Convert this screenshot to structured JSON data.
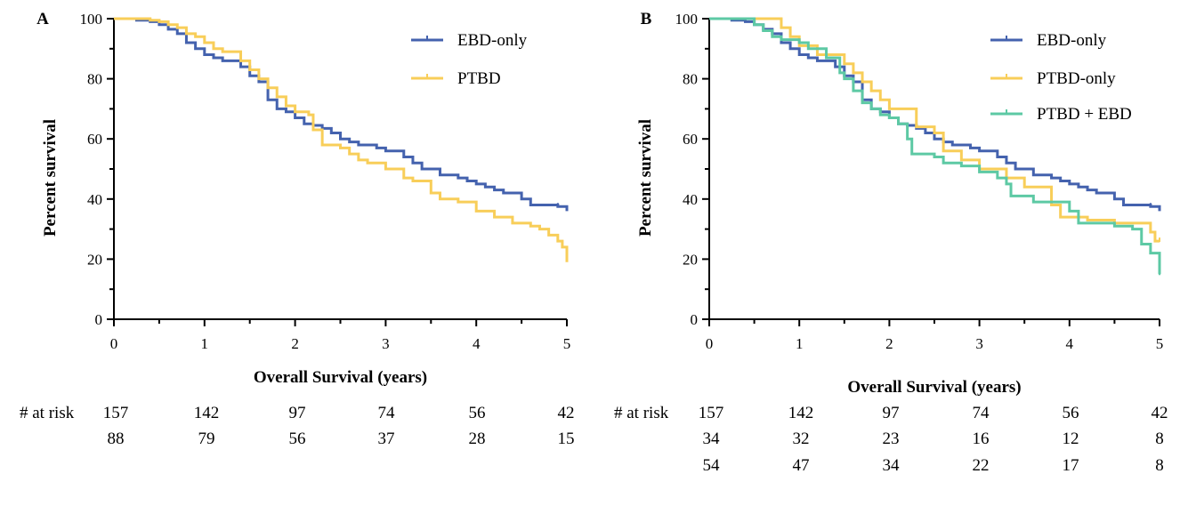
{
  "colors": {
    "ebd": "#4462AE",
    "ptbd": "#F8CE59",
    "combo": "#5DC9A4",
    "axis": "#000000"
  },
  "chart_data": [
    {
      "panel": "A",
      "type": "line",
      "xlabel": "Overall Survival (years)",
      "ylabel": "Percent survival",
      "xlim": [
        0,
        5
      ],
      "ylim": [
        0,
        100
      ],
      "xticks": [
        "0",
        "1",
        "2",
        "3",
        "4",
        "5"
      ],
      "yticks": [
        "0",
        "20",
        "40",
        "60",
        "80",
        "100"
      ],
      "legend": "top-right",
      "series": [
        {
          "name": "EBD-only",
          "color": "ebd",
          "points": [
            [
              0,
              100
            ],
            [
              0.25,
              99.5
            ],
            [
              0.4,
              99
            ],
            [
              0.5,
              98
            ],
            [
              0.6,
              96.5
            ],
            [
              0.7,
              95
            ],
            [
              0.8,
              92
            ],
            [
              0.9,
              90
            ],
            [
              1.0,
              88
            ],
            [
              1.1,
              87
            ],
            [
              1.2,
              86
            ],
            [
              1.4,
              84
            ],
            [
              1.5,
              81
            ],
            [
              1.6,
              79
            ],
            [
              1.7,
              73
            ],
            [
              1.8,
              70
            ],
            [
              1.9,
              69
            ],
            [
              2.0,
              67
            ],
            [
              2.1,
              65
            ],
            [
              2.2,
              64.5
            ],
            [
              2.3,
              63.5
            ],
            [
              2.4,
              62
            ],
            [
              2.5,
              60
            ],
            [
              2.6,
              59
            ],
            [
              2.7,
              58
            ],
            [
              2.9,
              57
            ],
            [
              3.0,
              56
            ],
            [
              3.2,
              54
            ],
            [
              3.3,
              52
            ],
            [
              3.4,
              50
            ],
            [
              3.6,
              48
            ],
            [
              3.8,
              47
            ],
            [
              3.9,
              46
            ],
            [
              4.0,
              45
            ],
            [
              4.1,
              44
            ],
            [
              4.2,
              43
            ],
            [
              4.3,
              42
            ],
            [
              4.5,
              40
            ],
            [
              4.6,
              38
            ],
            [
              4.7,
              38
            ],
            [
              4.9,
              37.5
            ],
            [
              5.0,
              36
            ]
          ]
        },
        {
          "name": "PTBD",
          "color": "ptbd",
          "points": [
            [
              0,
              100
            ],
            [
              0.4,
              99.5
            ],
            [
              0.5,
              99
            ],
            [
              0.6,
              98
            ],
            [
              0.7,
              97
            ],
            [
              0.8,
              95
            ],
            [
              0.9,
              94
            ],
            [
              1.0,
              92
            ],
            [
              1.1,
              90
            ],
            [
              1.2,
              89
            ],
            [
              1.4,
              86
            ],
            [
              1.5,
              83
            ],
            [
              1.6,
              80
            ],
            [
              1.7,
              77
            ],
            [
              1.8,
              74
            ],
            [
              1.9,
              71
            ],
            [
              2.0,
              69
            ],
            [
              2.15,
              68
            ],
            [
              2.2,
              63
            ],
            [
              2.3,
              58
            ],
            [
              2.5,
              57
            ],
            [
              2.6,
              55
            ],
            [
              2.7,
              53
            ],
            [
              2.8,
              52
            ],
            [
              3.0,
              50
            ],
            [
              3.2,
              47
            ],
            [
              3.3,
              46
            ],
            [
              3.5,
              42
            ],
            [
              3.6,
              40
            ],
            [
              3.8,
              39
            ],
            [
              4.0,
              36
            ],
            [
              4.2,
              34
            ],
            [
              4.4,
              32
            ],
            [
              4.6,
              31
            ],
            [
              4.7,
              30
            ],
            [
              4.8,
              28
            ],
            [
              4.9,
              26
            ],
            [
              4.95,
              24
            ],
            [
              5.0,
              19
            ]
          ]
        }
      ],
      "risk_table": {
        "label": "# at risk",
        "rows": [
          [
            "157",
            "142",
            "97",
            "74",
            "56",
            "42"
          ],
          [
            "88",
            "79",
            "56",
            "37",
            "28",
            "15"
          ]
        ]
      }
    },
    {
      "panel": "B",
      "type": "line",
      "xlabel": "Overall Survival (years)",
      "ylabel": "Percent survival",
      "xlim": [
        0,
        5
      ],
      "ylim": [
        0,
        100
      ],
      "xticks": [
        "0",
        "1",
        "2",
        "3",
        "4",
        "5"
      ],
      "yticks": [
        "0",
        "20",
        "40",
        "60",
        "80",
        "100"
      ],
      "legend": "top-right",
      "series": [
        {
          "name": "EBD-only",
          "color": "ebd",
          "points": [
            [
              0,
              100
            ],
            [
              0.25,
              99.5
            ],
            [
              0.4,
              99
            ],
            [
              0.5,
              98
            ],
            [
              0.6,
              96.5
            ],
            [
              0.7,
              95
            ],
            [
              0.8,
              92
            ],
            [
              0.9,
              90
            ],
            [
              1.0,
              88
            ],
            [
              1.1,
              87
            ],
            [
              1.2,
              86
            ],
            [
              1.4,
              84
            ],
            [
              1.5,
              81
            ],
            [
              1.6,
              79
            ],
            [
              1.7,
              73
            ],
            [
              1.8,
              70
            ],
            [
              1.9,
              69
            ],
            [
              2.0,
              67
            ],
            [
              2.1,
              65
            ],
            [
              2.2,
              64.5
            ],
            [
              2.3,
              63.5
            ],
            [
              2.4,
              62
            ],
            [
              2.5,
              60
            ],
            [
              2.6,
              59
            ],
            [
              2.7,
              58
            ],
            [
              2.9,
              57
            ],
            [
              3.0,
              56
            ],
            [
              3.2,
              54
            ],
            [
              3.3,
              52
            ],
            [
              3.4,
              50
            ],
            [
              3.6,
              48
            ],
            [
              3.8,
              47
            ],
            [
              3.9,
              46
            ],
            [
              4.0,
              45
            ],
            [
              4.1,
              44
            ],
            [
              4.2,
              43
            ],
            [
              4.3,
              42
            ],
            [
              4.5,
              40
            ],
            [
              4.6,
              38
            ],
            [
              4.7,
              38
            ],
            [
              4.9,
              37.5
            ],
            [
              5.0,
              36
            ]
          ]
        },
        {
          "name": "PTBD-only",
          "color": "ptbd",
          "points": [
            [
              0,
              100
            ],
            [
              0.8,
              97
            ],
            [
              0.9,
              94
            ],
            [
              1.0,
              91
            ],
            [
              1.2,
              88
            ],
            [
              1.5,
              85
            ],
            [
              1.6,
              82
            ],
            [
              1.7,
              79
            ],
            [
              1.8,
              76
            ],
            [
              1.9,
              73
            ],
            [
              2.0,
              70
            ],
            [
              2.3,
              64
            ],
            [
              2.5,
              62
            ],
            [
              2.6,
              56
            ],
            [
              2.8,
              53
            ],
            [
              3.0,
              50
            ],
            [
              3.3,
              47
            ],
            [
              3.5,
              44
            ],
            [
              3.8,
              38
            ],
            [
              3.9,
              34
            ],
            [
              4.2,
              33
            ],
            [
              4.5,
              32
            ],
            [
              4.9,
              29
            ],
            [
              4.95,
              26
            ],
            [
              5.0,
              26
            ]
          ]
        },
        {
          "name": "PTBD + EBD",
          "color": "combo",
          "points": [
            [
              0,
              100
            ],
            [
              0.5,
              98
            ],
            [
              0.6,
              96
            ],
            [
              0.7,
              94
            ],
            [
              0.8,
              93
            ],
            [
              1.0,
              92
            ],
            [
              1.1,
              90
            ],
            [
              1.3,
              87
            ],
            [
              1.45,
              82
            ],
            [
              1.5,
              80
            ],
            [
              1.6,
              76
            ],
            [
              1.7,
              72
            ],
            [
              1.8,
              70
            ],
            [
              1.9,
              68
            ],
            [
              2.0,
              67
            ],
            [
              2.1,
              65
            ],
            [
              2.2,
              60
            ],
            [
              2.25,
              55
            ],
            [
              2.5,
              54
            ],
            [
              2.6,
              52
            ],
            [
              2.8,
              51
            ],
            [
              3.0,
              49
            ],
            [
              3.2,
              47
            ],
            [
              3.3,
              45
            ],
            [
              3.35,
              41
            ],
            [
              3.6,
              39
            ],
            [
              4.0,
              36
            ],
            [
              4.1,
              32
            ],
            [
              4.5,
              31
            ],
            [
              4.7,
              30
            ],
            [
              4.8,
              25
            ],
            [
              4.9,
              22
            ],
            [
              5.0,
              15
            ]
          ]
        }
      ],
      "risk_table": {
        "label": "# at risk",
        "rows": [
          [
            "157",
            "142",
            "97",
            "74",
            "56",
            "42"
          ],
          [
            "34",
            "32",
            "23",
            "16",
            "12",
            "8"
          ],
          [
            "54",
            "47",
            "34",
            "22",
            "17",
            "8"
          ]
        ]
      }
    }
  ]
}
